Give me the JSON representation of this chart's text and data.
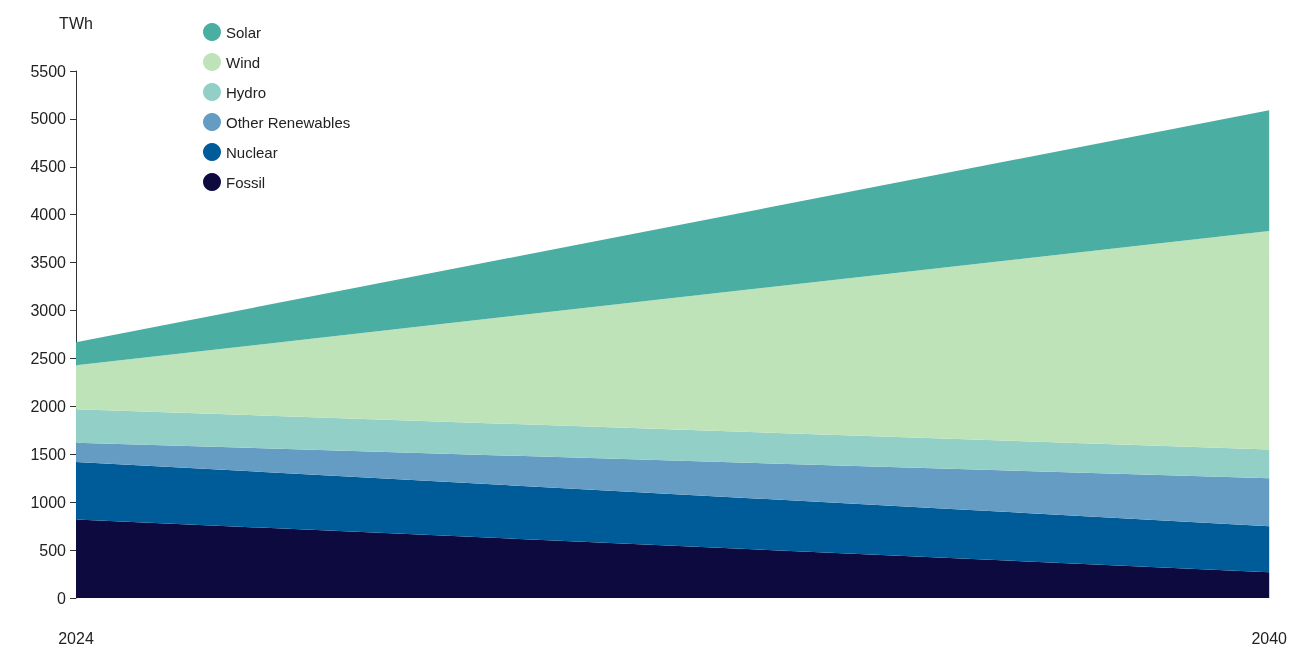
{
  "chart_data": {
    "type": "area",
    "stacked": true,
    "ylabel": "TWh",
    "categories": [
      "2024",
      "2040"
    ],
    "ylim": [
      0,
      5500
    ],
    "yticks": [
      0,
      500,
      1000,
      1500,
      2000,
      2500,
      3000,
      3500,
      4000,
      4500,
      5000,
      5500
    ],
    "grid": false,
    "legend": "top left",
    "marker": "none",
    "series": [
      {
        "name": "Fossil",
        "color": "#0d0a40",
        "values": [
          820,
          270
        ]
      },
      {
        "name": "Nuclear",
        "color": "#005b99",
        "values": [
          600,
          480
        ]
      },
      {
        "name": "Other Renewables",
        "color": "#659cc4",
        "values": [
          200,
          500
        ]
      },
      {
        "name": "Hydro",
        "color": "#92cfc6",
        "values": [
          350,
          300
        ]
      },
      {
        "name": "Wind",
        "color": "#bfe3b8",
        "values": [
          460,
          2280
        ]
      },
      {
        "name": "Solar",
        "color": "#4aaea2",
        "values": [
          240,
          1260
        ]
      }
    ]
  }
}
